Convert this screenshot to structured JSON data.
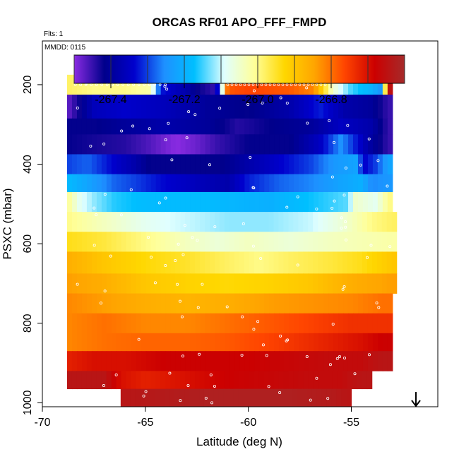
{
  "chart_data": {
    "type": "heatmap",
    "title": "ORCAS RF01 APO_FFF_FMPD",
    "flights_label": "Flts: 1",
    "date_label": "MMDD: 0115",
    "xlabel": "Latitude (deg N)",
    "ylabel": "PSXC (mbar)",
    "xlim": [
      -70,
      -50.8
    ],
    "ylim": [
      1010,
      90
    ],
    "x_ticks": [
      -70,
      -65,
      -60,
      -55
    ],
    "x_tick_labels": [
      "-70",
      "-65",
      "-60",
      "-55"
    ],
    "y_ticks": [
      200,
      400,
      600,
      800,
      1000
    ],
    "y_tick_labels": [
      "200",
      "400",
      "600",
      "800",
      "1000"
    ],
    "colorbar": {
      "range": [
        -267.5,
        -266.6
      ],
      "ticks": [
        -267.4,
        -267.2,
        -267.0,
        -266.8
      ],
      "tick_labels": [
        "-267.4",
        "-267.2",
        "-267.0",
        "-266.8"
      ],
      "colors": [
        "#8a2be2",
        "#00008b",
        "#0000cd",
        "#1e90ff",
        "#00bfff",
        "#e0ffff",
        "#ffff99",
        "#ffd700",
        "#ffa500",
        "#ff4500",
        "#cc0000",
        "#a52a2a"
      ]
    },
    "rows": [
      {
        "p": [
          175,
          225
        ],
        "lat": [
          -68.8,
          -53.0
        ],
        "vals": [
          [
            -68.8,
            -266.98
          ],
          [
            -67.5,
            -267.0
          ],
          [
            -66.0,
            -267.0
          ],
          [
            -64.7,
            -267.02
          ],
          [
            -64.3,
            -267.32
          ],
          [
            -63.0,
            -267.38
          ],
          [
            -62.5,
            -267.42
          ],
          [
            -61.6,
            -267.45
          ],
          [
            -61.0,
            -266.78
          ],
          [
            -60.0,
            -266.76
          ],
          [
            -58.0,
            -266.78
          ],
          [
            -56.8,
            -266.82
          ],
          [
            -56.3,
            -266.95
          ],
          [
            -55.9,
            -267.05
          ],
          [
            -55.0,
            -267.15
          ],
          [
            -54.0,
            -267.2
          ],
          [
            -53.5,
            -267.25
          ],
          [
            -53.2,
            -266.65
          ]
        ]
      },
      {
        "p": [
          225,
          285
        ],
        "lat": [
          -68.8,
          -53.0
        ],
        "vals": [
          [
            -68.8,
            -267.48
          ],
          [
            -67.5,
            -267.36
          ],
          [
            -66.0,
            -267.34
          ],
          [
            -64.0,
            -267.36
          ],
          [
            -62.0,
            -267.4
          ],
          [
            -60.0,
            -267.42
          ],
          [
            -58.0,
            -267.38
          ],
          [
            -56.5,
            -267.32
          ],
          [
            -55.3,
            -267.38
          ],
          [
            -54.0,
            -267.4
          ],
          [
            -53.2,
            -267.45
          ]
        ]
      },
      {
        "p": [
          285,
          325
        ],
        "lat": [
          -68.8,
          -53.0
        ],
        "vals": [
          [
            -68.8,
            -267.42
          ],
          [
            -67.5,
            -267.42
          ],
          [
            -66.0,
            -267.4
          ],
          [
            -64.0,
            -267.38
          ],
          [
            -62.0,
            -267.4
          ],
          [
            -60.5,
            -267.44
          ],
          [
            -59.0,
            -267.42
          ],
          [
            -57.0,
            -267.4
          ],
          [
            -55.5,
            -267.35
          ],
          [
            -54.0,
            -267.38
          ],
          [
            -53.2,
            -267.45
          ]
        ]
      },
      {
        "p": [
          325,
          375
        ],
        "lat": [
          -68.8,
          -53.0
        ],
        "vals": [
          [
            -68.8,
            -267.42
          ],
          [
            -67.5,
            -267.43
          ],
          [
            -66.0,
            -267.44
          ],
          [
            -65.0,
            -267.46
          ],
          [
            -63.5,
            -267.5
          ],
          [
            -62.5,
            -267.48
          ],
          [
            -61.5,
            -267.45
          ],
          [
            -60.0,
            -267.42
          ],
          [
            -58.0,
            -267.42
          ],
          [
            -56.5,
            -267.35
          ],
          [
            -55.5,
            -267.25
          ],
          [
            -54.2,
            -267.38
          ],
          [
            -53.2,
            -267.45
          ]
        ]
      },
      {
        "p": [
          375,
          425
        ],
        "lat": [
          -68.8,
          -53.0
        ],
        "vals": [
          [
            -68.8,
            -267.3
          ],
          [
            -67.8,
            -267.28
          ],
          [
            -66.5,
            -267.34
          ],
          [
            -65.5,
            -267.38
          ],
          [
            -64.8,
            -267.42
          ],
          [
            -62.8,
            -267.42
          ],
          [
            -61.3,
            -267.42
          ],
          [
            -60.0,
            -267.38
          ],
          [
            -58.5,
            -267.34
          ],
          [
            -57.0,
            -267.3
          ],
          [
            -55.8,
            -267.24
          ],
          [
            -54.8,
            -267.22
          ],
          [
            -54.4,
            -267.34
          ],
          [
            -53.8,
            -267.3
          ],
          [
            -53.2,
            -267.22
          ]
        ]
      },
      {
        "p": [
          425,
          470
        ],
        "lat": [
          -68.8,
          -53.0
        ],
        "vals": [
          [
            -68.8,
            -267.18
          ],
          [
            -67.8,
            -267.22
          ],
          [
            -66.5,
            -267.28
          ],
          [
            -65.5,
            -267.3
          ],
          [
            -64.3,
            -267.33
          ],
          [
            -62.5,
            -267.36
          ],
          [
            -61.0,
            -267.38
          ],
          [
            -60.0,
            -267.32
          ],
          [
            -58.5,
            -267.28
          ],
          [
            -57.0,
            -267.26
          ],
          [
            -55.5,
            -267.22
          ],
          [
            -54.5,
            -267.2
          ],
          [
            -54.0,
            -267.26
          ],
          [
            -53.2,
            -267.24
          ]
        ]
      },
      {
        "p": [
          470,
          520
        ],
        "lat": [
          -68.8,
          -53.0
        ],
        "vals": [
          [
            -68.8,
            -267.0
          ],
          [
            -68.2,
            -267.08
          ],
          [
            -67.5,
            -267.12
          ],
          [
            -66.5,
            -267.16
          ],
          [
            -65.0,
            -267.18
          ],
          [
            -62.0,
            -267.18
          ],
          [
            -59.0,
            -267.2
          ],
          [
            -57.0,
            -267.17
          ],
          [
            -55.2,
            -267.14
          ],
          [
            -54.8,
            -267.05
          ],
          [
            -53.8,
            -267.08
          ],
          [
            -53.2,
            -267.0
          ]
        ]
      },
      {
        "p": [
          520,
          570
        ],
        "lat": [
          -68.8,
          -52.8
        ],
        "vals": [
          [
            -68.8,
            -267.0
          ],
          [
            -67.0,
            -267.04
          ],
          [
            -65.0,
            -267.08
          ],
          [
            -63.0,
            -267.1
          ],
          [
            -61.0,
            -267.12
          ],
          [
            -59.0,
            -267.12
          ],
          [
            -57.0,
            -267.1
          ],
          [
            -55.5,
            -267.06
          ],
          [
            -54.0,
            -267.0
          ],
          [
            -53.0,
            -266.98
          ]
        ]
      },
      {
        "p": [
          570,
          620
        ],
        "lat": [
          -68.8,
          -52.8
        ],
        "vals": [
          [
            -68.8,
            -266.94
          ],
          [
            -67.0,
            -266.96
          ],
          [
            -65.0,
            -267.0
          ],
          [
            -63.0,
            -267.04
          ],
          [
            -61.5,
            -267.06
          ],
          [
            -60.0,
            -267.04
          ],
          [
            -58.0,
            -267.06
          ],
          [
            -56.0,
            -267.04
          ],
          [
            -54.5,
            -267.03
          ],
          [
            -53.0,
            -267.02
          ]
        ]
      },
      {
        "p": [
          620,
          675
        ],
        "lat": [
          -68.8,
          -52.8
        ],
        "vals": [
          [
            -68.8,
            -266.86
          ],
          [
            -67.0,
            -266.9
          ],
          [
            -65.0,
            -266.93
          ],
          [
            -63.0,
            -266.95
          ],
          [
            -61.0,
            -266.98
          ],
          [
            -59.5,
            -267.0
          ],
          [
            -58.0,
            -266.98
          ],
          [
            -56.0,
            -266.96
          ],
          [
            -54.5,
            -266.94
          ],
          [
            -53.0,
            -266.9
          ]
        ]
      },
      {
        "p": [
          675,
          725
        ],
        "lat": [
          -68.8,
          -52.8
        ],
        "vals": [
          [
            -68.8,
            -266.84
          ],
          [
            -67.0,
            -266.86
          ],
          [
            -65.0,
            -266.9
          ],
          [
            -63.0,
            -266.92
          ],
          [
            -61.0,
            -266.93
          ],
          [
            -59.0,
            -266.92
          ],
          [
            -57.0,
            -266.9
          ],
          [
            -55.0,
            -266.86
          ],
          [
            -53.0,
            -266.84
          ]
        ]
      },
      {
        "p": [
          725,
          775
        ],
        "lat": [
          -68.8,
          -53.0
        ],
        "vals": [
          [
            -68.8,
            -266.82
          ],
          [
            -67.0,
            -266.84
          ],
          [
            -65.0,
            -266.86
          ],
          [
            -63.0,
            -266.87
          ],
          [
            -61.0,
            -266.86
          ],
          [
            -59.0,
            -266.84
          ],
          [
            -57.0,
            -266.83
          ],
          [
            -55.0,
            -266.82
          ],
          [
            -53.5,
            -266.8
          ]
        ]
      },
      {
        "p": [
          775,
          825
        ],
        "lat": [
          -68.8,
          -53.0
        ],
        "vals": [
          [
            -68.8,
            -266.82
          ],
          [
            -67.0,
            -266.8
          ],
          [
            -65.0,
            -266.82
          ],
          [
            -63.0,
            -266.82
          ],
          [
            -61.0,
            -266.8
          ],
          [
            -59.0,
            -266.78
          ],
          [
            -57.0,
            -266.76
          ],
          [
            -55.0,
            -266.74
          ],
          [
            -53.5,
            -266.74
          ]
        ]
      },
      {
        "p": [
          825,
          870
        ],
        "lat": [
          -68.8,
          -53.0
        ],
        "vals": [
          [
            -68.8,
            -266.82
          ],
          [
            -67.0,
            -266.8
          ],
          [
            -65.0,
            -266.79
          ],
          [
            -63.0,
            -266.79
          ],
          [
            -61.0,
            -266.78
          ],
          [
            -59.0,
            -266.76
          ],
          [
            -57.5,
            -266.74
          ],
          [
            -56.0,
            -266.72
          ],
          [
            -54.5,
            -266.7
          ],
          [
            -53.5,
            -266.68
          ]
        ]
      },
      {
        "p": [
          870,
          920
        ],
        "lat": [
          -68.8,
          -53.0
        ],
        "vals": [
          [
            -68.8,
            -266.72
          ],
          [
            -67.5,
            -266.7
          ],
          [
            -66.0,
            -266.7
          ],
          [
            -64.0,
            -266.68
          ],
          [
            -62.0,
            -266.68
          ],
          [
            -60.0,
            -266.68
          ],
          [
            -58.0,
            -266.67
          ],
          [
            -56.0,
            -266.66
          ],
          [
            -54.5,
            -266.66
          ],
          [
            -53.5,
            -266.64
          ]
        ]
      },
      {
        "p": [
          920,
          965
        ],
        "lat": [
          -68.8,
          -54.0
        ],
        "vals": [
          [
            -68.8,
            -266.64
          ],
          [
            -67.0,
            -266.64
          ],
          [
            -66.2,
            -266.7
          ],
          [
            -65.0,
            -266.72
          ],
          [
            -63.0,
            -266.7
          ],
          [
            -61.0,
            -266.68
          ],
          [
            -59.0,
            -266.67
          ],
          [
            -57.0,
            -266.66
          ],
          [
            -55.5,
            -266.66
          ],
          [
            -54.5,
            -266.64
          ]
        ]
      },
      {
        "p": [
          965,
          1010
        ],
        "lat": [
          -66.2,
          -55.0
        ],
        "vals": [
          [
            -66.2,
            -266.64
          ],
          [
            -64.0,
            -266.63
          ],
          [
            -62.0,
            -266.62
          ],
          [
            -60.0,
            -266.62
          ],
          [
            -58.0,
            -266.62
          ],
          [
            -56.0,
            -266.63
          ],
          [
            -55.2,
            -266.64
          ]
        ]
      }
    ]
  }
}
